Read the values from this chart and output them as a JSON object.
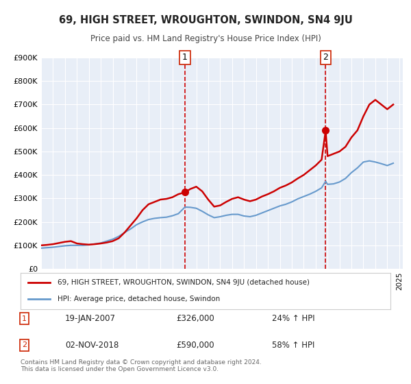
{
  "title": "69, HIGH STREET, WROUGHTON, SWINDON, SN4 9JU",
  "subtitle": "Price paid vs. HM Land Registry's House Price Index (HPI)",
  "xlabel": "",
  "ylabel": "",
  "ylim": [
    0,
    900000
  ],
  "xlim_start": 1995.0,
  "xlim_end": 2025.3,
  "background_color": "#ffffff",
  "plot_bg_color": "#e8eef7",
  "grid_color": "#ffffff",
  "legend1_label": "69, HIGH STREET, WROUGHTON, SWINDON, SN4 9JU (detached house)",
  "legend2_label": "HPI: Average price, detached house, Swindon",
  "property_color": "#cc0000",
  "hpi_color": "#6699cc",
  "marker1_date": 2007.05,
  "marker1_value": 326000,
  "marker1_label": "1",
  "marker2_date": 2018.84,
  "marker2_value": 590000,
  "marker2_label": "2",
  "annotation1_date": "19-JAN-2007",
  "annotation1_price": "£326,000",
  "annotation1_hpi": "24% ↑ HPI",
  "annotation2_date": "02-NOV-2018",
  "annotation2_price": "£590,000",
  "annotation2_hpi": "58% ↑ HPI",
  "footer_text": "Contains HM Land Registry data © Crown copyright and database right 2024.\nThis data is licensed under the Open Government Licence v3.0.",
  "property_x": [
    1995.0,
    1995.5,
    1996.0,
    1996.5,
    1997.0,
    1997.5,
    1998.0,
    1998.5,
    1999.0,
    1999.5,
    2000.0,
    2000.5,
    2001.0,
    2001.5,
    2002.0,
    2002.5,
    2003.0,
    2003.5,
    2004.0,
    2004.5,
    2005.0,
    2005.5,
    2006.0,
    2006.5,
    2007.05,
    2007.5,
    2008.0,
    2008.5,
    2009.0,
    2009.5,
    2010.0,
    2010.5,
    2011.0,
    2011.5,
    2012.0,
    2012.5,
    2013.0,
    2013.5,
    2014.0,
    2014.5,
    2015.0,
    2015.5,
    2016.0,
    2016.5,
    2017.0,
    2017.5,
    2018.0,
    2018.5,
    2018.84,
    2019.0,
    2019.5,
    2020.0,
    2020.5,
    2021.0,
    2021.5,
    2022.0,
    2022.5,
    2023.0,
    2023.5,
    2024.0,
    2024.5
  ],
  "property_y": [
    100000,
    102000,
    105000,
    110000,
    115000,
    118000,
    108000,
    105000,
    103000,
    105000,
    108000,
    112000,
    118000,
    130000,
    155000,
    185000,
    215000,
    250000,
    275000,
    285000,
    295000,
    298000,
    305000,
    318000,
    326000,
    340000,
    350000,
    330000,
    295000,
    265000,
    270000,
    285000,
    298000,
    305000,
    295000,
    288000,
    295000,
    308000,
    318000,
    330000,
    345000,
    355000,
    368000,
    385000,
    400000,
    420000,
    440000,
    465000,
    590000,
    480000,
    490000,
    500000,
    520000,
    560000,
    590000,
    650000,
    700000,
    720000,
    700000,
    680000,
    700000
  ],
  "hpi_x": [
    1995.0,
    1995.5,
    1996.0,
    1996.5,
    1997.0,
    1997.5,
    1998.0,
    1998.5,
    1999.0,
    1999.5,
    2000.0,
    2000.5,
    2001.0,
    2001.5,
    2002.0,
    2002.5,
    2003.0,
    2003.5,
    2004.0,
    2004.5,
    2005.0,
    2005.5,
    2006.0,
    2006.5,
    2007.05,
    2007.5,
    2008.0,
    2008.5,
    2009.0,
    2009.5,
    2010.0,
    2010.5,
    2011.0,
    2011.5,
    2012.0,
    2012.5,
    2013.0,
    2013.5,
    2014.0,
    2014.5,
    2015.0,
    2015.5,
    2016.0,
    2016.5,
    2017.0,
    2017.5,
    2018.0,
    2018.5,
    2018.84,
    2019.0,
    2019.5,
    2020.0,
    2020.5,
    2021.0,
    2021.5,
    2022.0,
    2022.5,
    2023.0,
    2023.5,
    2024.0,
    2024.5
  ],
  "hpi_y": [
    88000,
    90000,
    92000,
    95000,
    98000,
    100000,
    100000,
    100000,
    102000,
    106000,
    110000,
    118000,
    126000,
    138000,
    155000,
    170000,
    188000,
    200000,
    210000,
    215000,
    218000,
    220000,
    226000,
    235000,
    263000,
    262000,
    258000,
    245000,
    230000,
    218000,
    222000,
    228000,
    232000,
    232000,
    225000,
    222000,
    228000,
    238000,
    248000,
    258000,
    268000,
    275000,
    285000,
    298000,
    308000,
    318000,
    330000,
    345000,
    373000,
    360000,
    362000,
    370000,
    385000,
    410000,
    430000,
    455000,
    460000,
    455000,
    448000,
    440000,
    450000
  ]
}
